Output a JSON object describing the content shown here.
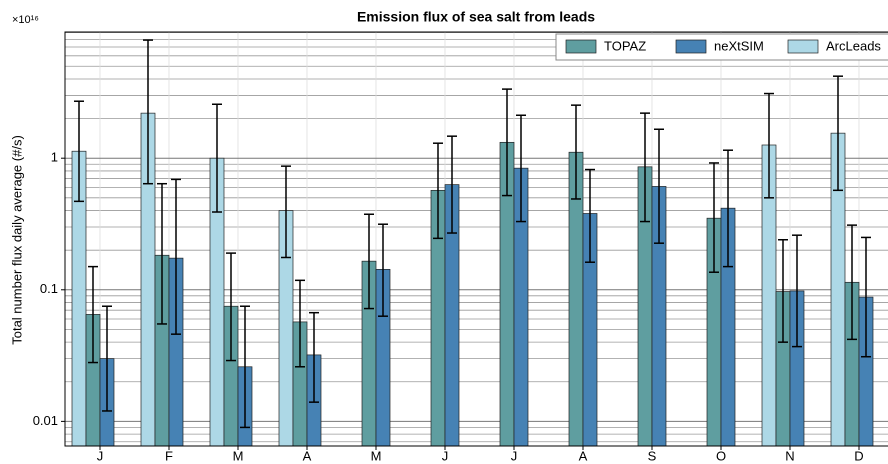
{
  "chart_data": {
    "type": "bar",
    "title": "Emission flux of sea salt from leads",
    "y_label": "Total number flux daily average (#/s)",
    "y_multiplier": "×10¹⁶",
    "log_y": true,
    "grid": true,
    "legend_position": "upper right",
    "categories": [
      "J",
      "F",
      "M",
      "A",
      "M",
      "J",
      "J",
      "A",
      "S",
      "O",
      "N",
      "D"
    ],
    "ylim": [
      0.0065,
      9.1
    ],
    "yticks": [
      0.01,
      0.1,
      1
    ],
    "series": [
      {
        "name": "ArcLeads",
        "color": "#add8e6",
        "values": [
          1.13,
          2.2,
          1.0,
          0.4,
          null,
          null,
          null,
          null,
          null,
          null,
          1.26,
          1.55
        ],
        "ci_low": [
          0.47,
          0.64,
          0.39,
          0.176,
          null,
          null,
          null,
          null,
          null,
          null,
          0.5,
          0.57
        ],
        "ci_high": [
          2.71,
          7.9,
          2.57,
          0.87,
          null,
          null,
          null,
          null,
          null,
          null,
          3.1,
          4.2
        ]
      },
      {
        "name": "TOPAZ",
        "color": "#5f9ea0",
        "values": [
          0.065,
          0.183,
          0.075,
          0.057,
          0.165,
          0.57,
          1.32,
          1.11,
          0.86,
          0.35,
          0.097,
          0.114
        ],
        "ci_low": [
          0.028,
          0.055,
          0.029,
          0.026,
          0.072,
          0.246,
          0.52,
          0.49,
          0.33,
          0.136,
          0.04,
          0.042
        ],
        "ci_high": [
          0.15,
          0.64,
          0.19,
          0.118,
          0.375,
          1.3,
          3.35,
          2.53,
          2.2,
          0.92,
          0.24,
          0.31
        ]
      },
      {
        "name": "neXtSIM",
        "color": "#4682b4",
        "values": [
          0.03,
          0.174,
          0.026,
          0.032,
          0.143,
          0.63,
          0.84,
          0.38,
          0.61,
          0.417,
          0.098,
          0.088
        ],
        "ci_low": [
          0.012,
          0.046,
          0.009,
          0.014,
          0.063,
          0.27,
          0.33,
          0.162,
          0.226,
          0.15,
          0.037,
          0.031
        ],
        "ci_high": [
          0.075,
          0.69,
          0.075,
          0.067,
          0.315,
          1.47,
          2.12,
          0.82,
          1.66,
          1.15,
          0.26,
          0.25
        ]
      }
    ]
  }
}
